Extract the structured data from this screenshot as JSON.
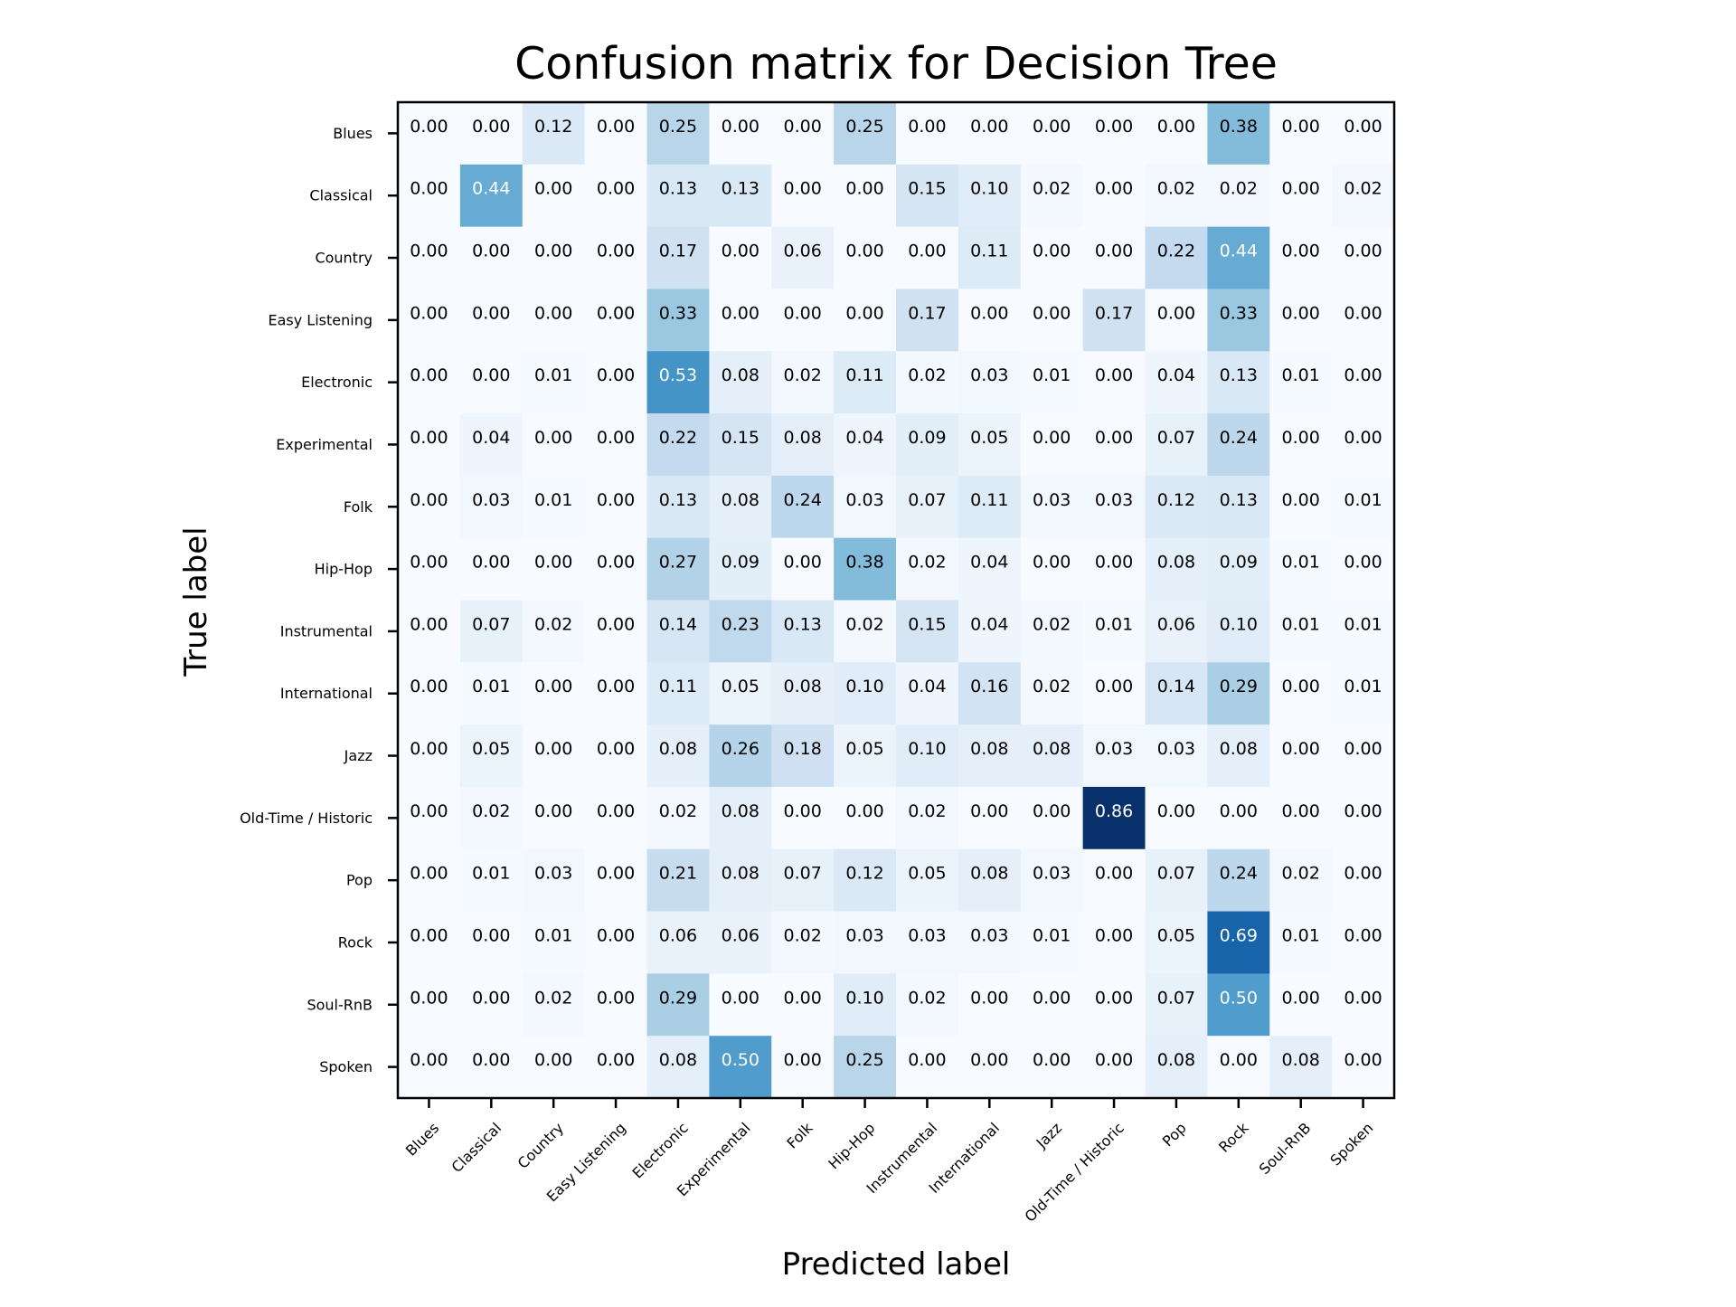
{
  "chart_data": {
    "type": "heatmap",
    "title": "Confusion matrix for Decision Tree",
    "xlabel": "Predicted label",
    "ylabel": "True label",
    "colormap": "Blues",
    "value_range": [
      0,
      0.86
    ],
    "text_color_dark": "#000000",
    "text_color_light": "#ffffff",
    "x_categories": [
      "Blues",
      "Classical",
      "Country",
      "Easy Listening",
      "Electronic",
      "Experimental",
      "Folk",
      "Hip-Hop",
      "Instrumental",
      "International",
      "Jazz",
      "Old-Time / Historic",
      "Pop",
      "Rock",
      "Soul-RnB",
      "Spoken"
    ],
    "y_categories": [
      "Blues",
      "Classical",
      "Country",
      "Easy Listening",
      "Electronic",
      "Experimental",
      "Folk",
      "Hip-Hop",
      "Instrumental",
      "International",
      "Jazz",
      "Old-Time / Historic",
      "Pop",
      "Rock",
      "Soul-RnB",
      "Spoken"
    ],
    "values": [
      [
        0.0,
        0.0,
        0.12,
        0.0,
        0.25,
        0.0,
        0.0,
        0.25,
        0.0,
        0.0,
        0.0,
        0.0,
        0.0,
        0.38,
        0.0,
        0.0
      ],
      [
        0.0,
        0.44,
        0.0,
        0.0,
        0.13,
        0.13,
        0.0,
        0.0,
        0.15,
        0.1,
        0.02,
        0.0,
        0.02,
        0.02,
        0.0,
        0.02
      ],
      [
        0.0,
        0.0,
        0.0,
        0.0,
        0.17,
        0.0,
        0.06,
        0.0,
        0.0,
        0.11,
        0.0,
        0.0,
        0.22,
        0.44,
        0.0,
        0.0
      ],
      [
        0.0,
        0.0,
        0.0,
        0.0,
        0.33,
        0.0,
        0.0,
        0.0,
        0.17,
        0.0,
        0.0,
        0.17,
        0.0,
        0.33,
        0.0,
        0.0
      ],
      [
        0.0,
        0.0,
        0.01,
        0.0,
        0.53,
        0.08,
        0.02,
        0.11,
        0.02,
        0.03,
        0.01,
        0.0,
        0.04,
        0.13,
        0.01,
        0.0
      ],
      [
        0.0,
        0.04,
        0.0,
        0.0,
        0.22,
        0.15,
        0.08,
        0.04,
        0.09,
        0.05,
        0.0,
        0.0,
        0.07,
        0.24,
        0.0,
        0.0
      ],
      [
        0.0,
        0.03,
        0.01,
        0.0,
        0.13,
        0.08,
        0.24,
        0.03,
        0.07,
        0.11,
        0.03,
        0.03,
        0.12,
        0.13,
        0.0,
        0.01
      ],
      [
        0.0,
        0.0,
        0.0,
        0.0,
        0.27,
        0.09,
        0.0,
        0.38,
        0.02,
        0.04,
        0.0,
        0.0,
        0.08,
        0.09,
        0.01,
        0.0
      ],
      [
        0.0,
        0.07,
        0.02,
        0.0,
        0.14,
        0.23,
        0.13,
        0.02,
        0.15,
        0.04,
        0.02,
        0.01,
        0.06,
        0.1,
        0.01,
        0.01
      ],
      [
        0.0,
        0.01,
        0.0,
        0.0,
        0.11,
        0.05,
        0.08,
        0.1,
        0.04,
        0.16,
        0.02,
        0.0,
        0.14,
        0.29,
        0.0,
        0.01
      ],
      [
        0.0,
        0.05,
        0.0,
        0.0,
        0.08,
        0.26,
        0.18,
        0.05,
        0.1,
        0.08,
        0.08,
        0.03,
        0.03,
        0.08,
        0.0,
        0.0
      ],
      [
        0.0,
        0.02,
        0.0,
        0.0,
        0.02,
        0.08,
        0.0,
        0.0,
        0.02,
        0.0,
        0.0,
        0.86,
        0.0,
        0.0,
        0.0,
        0.0
      ],
      [
        0.0,
        0.01,
        0.03,
        0.0,
        0.21,
        0.08,
        0.07,
        0.12,
        0.05,
        0.08,
        0.03,
        0.0,
        0.07,
        0.24,
        0.02,
        0.0
      ],
      [
        0.0,
        0.0,
        0.01,
        0.0,
        0.06,
        0.06,
        0.02,
        0.03,
        0.03,
        0.03,
        0.01,
        0.0,
        0.05,
        0.69,
        0.01,
        0.0
      ],
      [
        0.0,
        0.0,
        0.02,
        0.0,
        0.29,
        0.0,
        0.0,
        0.1,
        0.02,
        0.0,
        0.0,
        0.0,
        0.07,
        0.5,
        0.0,
        0.0
      ],
      [
        0.0,
        0.0,
        0.0,
        0.0,
        0.08,
        0.5,
        0.0,
        0.25,
        0.0,
        0.0,
        0.0,
        0.0,
        0.08,
        0.0,
        0.08,
        0.0
      ]
    ]
  }
}
